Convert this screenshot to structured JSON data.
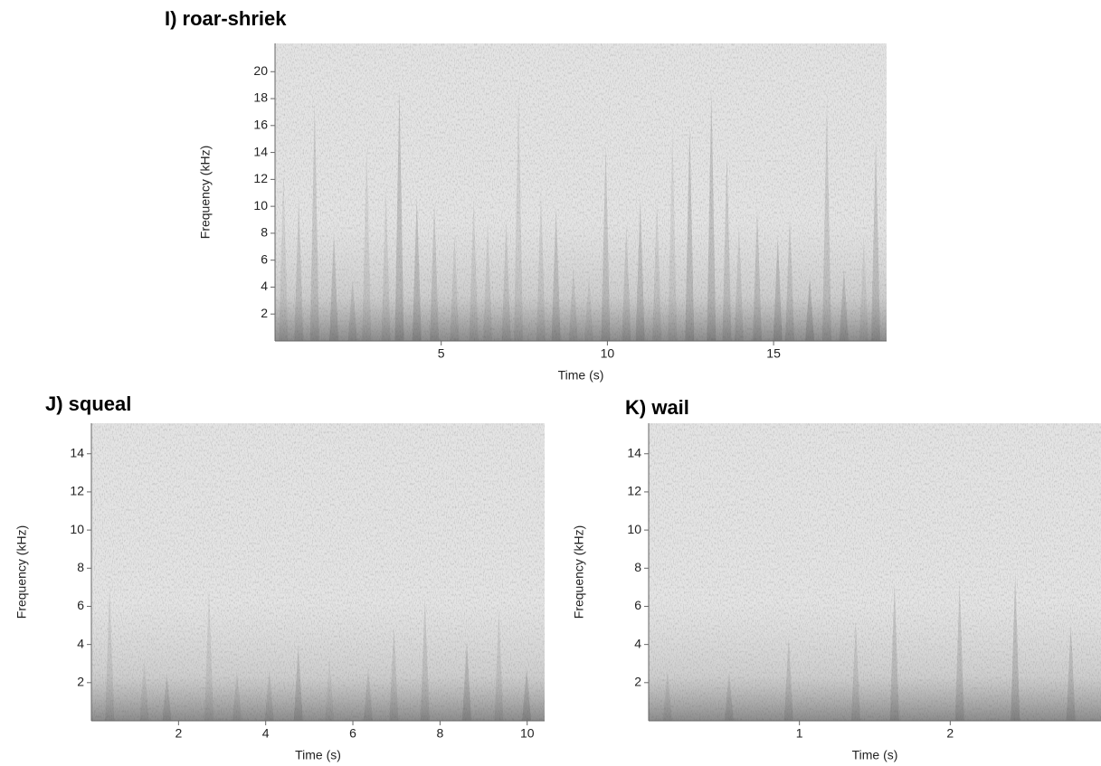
{
  "chart_data": [
    {
      "type": "spectrogram",
      "title": "I) roar-shriek",
      "x_label": "Time (s)",
      "y_label": "Frequency (kHz)",
      "xlim": [
        0,
        18.4
      ],
      "ylim": [
        0,
        22.1
      ],
      "xticks": [
        5,
        10,
        15
      ],
      "yticks": [
        2,
        4,
        6,
        8,
        10,
        12,
        14,
        16,
        18,
        20
      ]
    },
    {
      "type": "spectrogram",
      "title": "J) squeal",
      "x_label": "Time (s)",
      "y_label": "Frequency (kHz)",
      "xlim": [
        0,
        10.4
      ],
      "ylim": [
        0,
        15.6
      ],
      "xticks": [
        2,
        4,
        6,
        8,
        10
      ],
      "yticks": [
        2,
        4,
        6,
        8,
        10,
        12,
        14
      ]
    },
    {
      "type": "spectrogram",
      "title": "K) wail",
      "x_label": "Time (s)",
      "y_label": "Frequency (kHz)",
      "xlim": [
        0,
        3.0
      ],
      "ylim": [
        0,
        15.6
      ],
      "xticks": [
        1,
        2
      ],
      "yticks": [
        2,
        4,
        6,
        8,
        10,
        12,
        14
      ]
    }
  ]
}
